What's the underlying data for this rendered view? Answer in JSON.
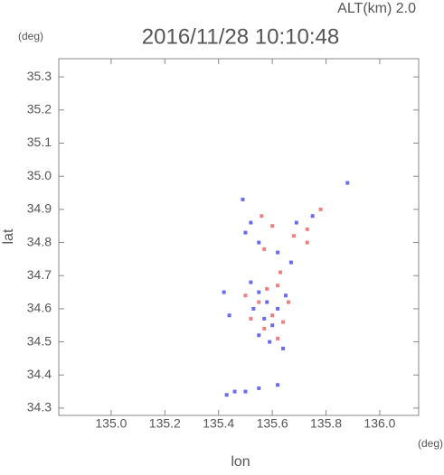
{
  "chart_data": {
    "type": "scatter",
    "title": "2016/11/28 10:10:48",
    "subtitle": "ALT(km) 2.0",
    "ylabel": "lat",
    "yunit": "(deg)",
    "xlabel": "lon",
    "xunit": "(deg)",
    "xlim": [
      134.805,
      136.145
    ],
    "ylim": [
      34.278,
      35.355
    ],
    "xticks": [
      {
        "value": 135.0,
        "label": "135.0"
      },
      135.2,
      135.4,
      135.6,
      135.8,
      {
        "value": 136.0,
        "label": "136.0"
      }
    ],
    "yticks": [
      34.3,
      34.4,
      34.5,
      34.6,
      34.7,
      34.8,
      34.9,
      {
        "value": 35.0,
        "label": "35.0"
      },
      35.1,
      35.2,
      35.3
    ],
    "series": [
      {
        "color": "#6b6bef",
        "x": [
          135.49,
          135.52,
          135.5,
          135.55,
          135.62,
          135.69,
          135.75,
          135.88,
          135.52,
          135.55,
          135.58,
          135.53,
          135.57,
          135.6,
          135.55,
          135.59,
          135.62,
          135.65,
          135.42,
          135.44,
          135.43,
          135.46,
          135.5,
          135.55,
          135.62,
          135.64,
          135.67
        ],
        "y": [
          34.93,
          34.86,
          34.83,
          34.8,
          34.77,
          34.86,
          34.88,
          34.98,
          34.68,
          34.65,
          34.62,
          34.6,
          34.57,
          34.55,
          34.52,
          34.5,
          34.6,
          34.64,
          34.65,
          34.58,
          34.34,
          34.35,
          34.35,
          34.36,
          34.37,
          34.48,
          34.74
        ]
      },
      {
        "color": "#f07f7f",
        "x": [
          135.56,
          135.6,
          135.68,
          135.73,
          135.78,
          135.73,
          135.57,
          135.63,
          135.58,
          135.62,
          135.55,
          135.6,
          135.64,
          135.57,
          135.62,
          135.5,
          135.52,
          135.66
        ],
        "y": [
          34.88,
          34.85,
          34.82,
          34.8,
          34.9,
          34.84,
          34.78,
          34.71,
          34.66,
          34.67,
          34.62,
          34.58,
          34.56,
          34.54,
          34.51,
          34.64,
          34.57,
          34.62
        ]
      }
    ]
  }
}
